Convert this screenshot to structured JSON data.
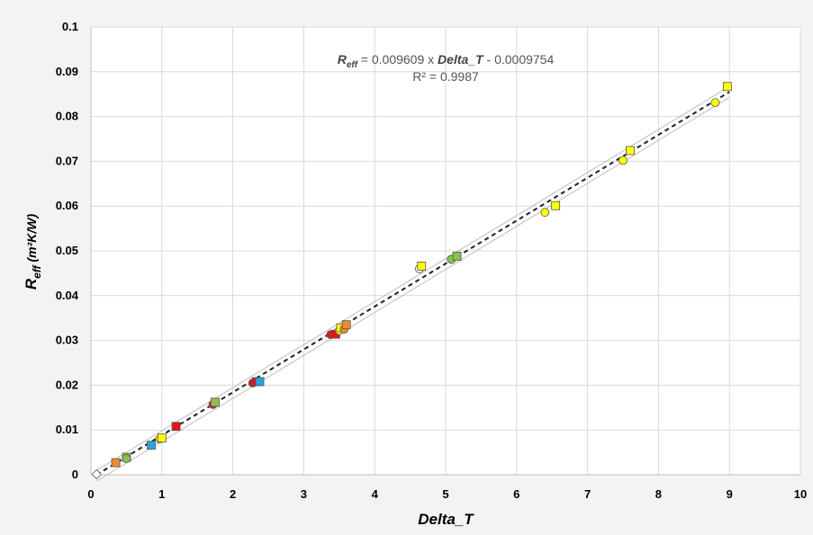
{
  "chart_data": {
    "type": "scatter",
    "title": "",
    "xlabel": "Delta_T",
    "ylabel_main": "R",
    "ylabel_sub": "eff",
    "ylabel_rest": " (m²K/W)",
    "xlim": [
      0,
      10
    ],
    "ylim": [
      0,
      0.1
    ],
    "x_ticks": [
      "0",
      "1",
      "2",
      "3",
      "4",
      "5",
      "6",
      "7",
      "8",
      "9",
      "10"
    ],
    "y_ticks": [
      "0",
      "0.01",
      "0.02",
      "0.03",
      "0.04",
      "0.05",
      "0.06",
      "0.07",
      "0.08",
      "0.09",
      "0.1"
    ],
    "grid": true,
    "equation": {
      "lhs": "R",
      "lhs_sub": "eff",
      "eq1": " = 0.009609 x ",
      "var": "Delta_T",
      "eq2": " - 0.0009754",
      "r2": "R² = 0.9987"
    },
    "fit": {
      "slope": 0.009609,
      "intercept": -0.0009754,
      "x_range": [
        0.08,
        9.0
      ]
    },
    "confidence_band_offset": 0.0012,
    "colors": {
      "yellow": "#ffff00",
      "green": "#8bc34a",
      "blue": "#29a3e0",
      "red": "#e8141b",
      "orange": "#ee8a2d",
      "white": "#ffffff",
      "fit_line": "#222222",
      "band": "#bdbdbd",
      "grid": "#d9d9d9"
    },
    "points": [
      {
        "x": 0.08,
        "y": 0.0001,
        "shape": "diamond",
        "color": "white"
      },
      {
        "x": 0.35,
        "y": 0.0027,
        "shape": "square",
        "color": "orange"
      },
      {
        "x": 0.5,
        "y": 0.0039,
        "shape": "square",
        "color": "green"
      },
      {
        "x": 0.5,
        "y": 0.0036,
        "shape": "circle",
        "color": "green"
      },
      {
        "x": 0.85,
        "y": 0.0066,
        "shape": "square",
        "color": "blue"
      },
      {
        "x": 0.97,
        "y": 0.008,
        "shape": "circle",
        "color": "yellow"
      },
      {
        "x": 1.0,
        "y": 0.0082,
        "shape": "square",
        "color": "yellow"
      },
      {
        "x": 1.2,
        "y": 0.0108,
        "shape": "square",
        "color": "red"
      },
      {
        "x": 1.72,
        "y": 0.0157,
        "shape": "circle",
        "color": "red"
      },
      {
        "x": 1.75,
        "y": 0.0162,
        "shape": "square",
        "color": "green"
      },
      {
        "x": 2.28,
        "y": 0.0205,
        "shape": "circle",
        "color": "red"
      },
      {
        "x": 2.33,
        "y": 0.0208,
        "shape": "square",
        "color": "red"
      },
      {
        "x": 2.38,
        "y": 0.0208,
        "shape": "square",
        "color": "blue"
      },
      {
        "x": 3.38,
        "y": 0.0313,
        "shape": "circle",
        "color": "red"
      },
      {
        "x": 3.45,
        "y": 0.0314,
        "shape": "square",
        "color": "red"
      },
      {
        "x": 3.5,
        "y": 0.0322,
        "shape": "circle",
        "color": "yellow"
      },
      {
        "x": 3.52,
        "y": 0.0328,
        "shape": "square",
        "color": "yellow"
      },
      {
        "x": 3.57,
        "y": 0.0325,
        "shape": "circle",
        "color": "orange"
      },
      {
        "x": 3.6,
        "y": 0.0335,
        "shape": "square",
        "color": "orange"
      },
      {
        "x": 4.63,
        "y": 0.046,
        "shape": "circle",
        "color": "white"
      },
      {
        "x": 4.66,
        "y": 0.0466,
        "shape": "square",
        "color": "yellow"
      },
      {
        "x": 5.08,
        "y": 0.0481,
        "shape": "circle",
        "color": "green"
      },
      {
        "x": 5.16,
        "y": 0.0488,
        "shape": "square",
        "color": "green"
      },
      {
        "x": 6.4,
        "y": 0.0586,
        "shape": "circle",
        "color": "yellow"
      },
      {
        "x": 6.55,
        "y": 0.0601,
        "shape": "square",
        "color": "yellow"
      },
      {
        "x": 7.5,
        "y": 0.0702,
        "shape": "circle",
        "color": "yellow"
      },
      {
        "x": 7.6,
        "y": 0.0724,
        "shape": "square",
        "color": "yellow"
      },
      {
        "x": 8.8,
        "y": 0.0831,
        "shape": "circle",
        "color": "yellow"
      },
      {
        "x": 8.97,
        "y": 0.0867,
        "shape": "square",
        "color": "yellow"
      }
    ]
  }
}
